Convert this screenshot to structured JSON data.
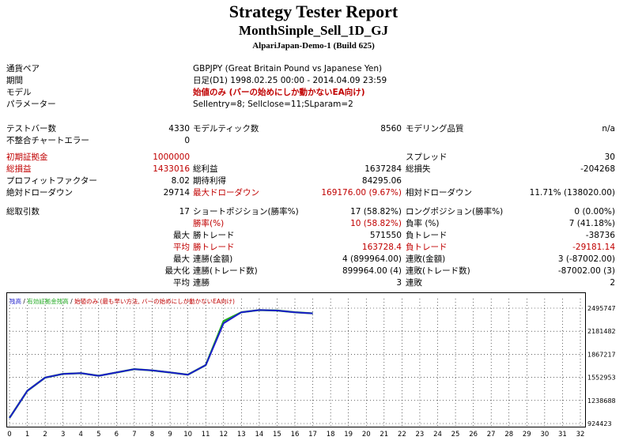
{
  "header": {
    "title": "Strategy Tester Report",
    "subtitle": "MonthSinple_Sell_1D_GJ",
    "account": "AlpariJapan-Demo-1 (Build 625)"
  },
  "info": {
    "symbol_label": "通貨ペア",
    "symbol_value": "GBPJPY (Great Britain Pound vs Japanese Yen)",
    "period_label": "期間",
    "period_value": "日足(D1) 1998.02.25 00:00 - 2014.04.09 23:59",
    "model_label": "モデル",
    "model_value": "始値のみ (バーの始めにしか動かないEA向け)",
    "params_label": "パラメーター",
    "params_value": "Sellentry=8; Sellclose=11;SLparam=2"
  },
  "stats": {
    "bars_label": "テストバー数",
    "bars_value": "4330",
    "ticks_label": "モデルティック数",
    "ticks_value": "8560",
    "quality_label": "モデリング品質",
    "quality_value": "n/a",
    "mismatch_label": "不整合チャートエラー",
    "mismatch_value": "0",
    "deposit_label": "初期証拠金",
    "deposit_value": "1000000",
    "spread_label": "スプレッド",
    "spread_value": "30",
    "total_profit_label": "総損益",
    "total_profit_value": "1433016",
    "gross_profit_label": "総利益",
    "gross_profit_value": "1637284",
    "gross_loss_label": "総損失",
    "gross_loss_value": "-204268",
    "pf_label": "プロフィットファクター",
    "pf_value": "8.02",
    "expected_label": "期待利得",
    "expected_value": "84295.06",
    "abs_dd_label": "絶対ドローダウン",
    "abs_dd_value": "29714",
    "max_dd_label": "最大ドローダウン",
    "max_dd_value": "169176.00 (9.67%)",
    "rel_dd_label": "相対ドローダウン",
    "rel_dd_value": "11.71% (138020.00)",
    "trades_label": "総取引数",
    "trades_value": "17",
    "short_label": "ショートポジション(勝率%)",
    "short_value": "17 (58.82%)",
    "long_label": "ロングポジション(勝率%)",
    "long_value": "0 (0.00%)",
    "winrate_label": "勝率(%)",
    "winrate_value": "10 (58.82%)",
    "lossrate_label": "負率 (%)",
    "lossrate_value": "7 (41.18%)",
    "max_label": "最大",
    "max_win_label": "勝トレード",
    "max_win_value": "571550",
    "max_loss_label": "負トレード",
    "max_loss_value": "-38736",
    "avg_label": "平均",
    "avg_win_label": "勝トレード",
    "avg_win_value": "163728.4",
    "avg_loss_label": "負トレード",
    "avg_loss_value": "-29181.14",
    "max2_label": "最大",
    "consec_win_amt_label": "連勝(金額)",
    "consec_win_amt_value": "4 (899964.00)",
    "consec_loss_amt_label": "連敗(金額)",
    "consec_loss_amt_value": "3 (-87002.00)",
    "maxc_label": "最大化",
    "consec_profit_label": "連勝(トレード数)",
    "consec_profit_value": "899964.00 (4)",
    "consec_lossc_label": "連敗(トレード数)",
    "consec_lossc_value": "-87002.00 (3)",
    "avg2_label": "平均",
    "avg_consec_win_label": "連勝",
    "avg_consec_win_value": "3",
    "avg_consec_loss_label": "連敗",
    "avg_consec_loss_value": "2"
  },
  "chart_data": {
    "type": "line",
    "legend": {
      "balance": "残高",
      "sep1": " / ",
      "equity": "有効証拠金残高",
      "sep2": " / ",
      "model": "始値のみ (最も早い方法, バーの始めにしか動かないEA向け)"
    },
    "x_ticks": [
      "0",
      "1",
      "2",
      "3",
      "4",
      "5",
      "6",
      "7",
      "8",
      "9",
      "10",
      "11",
      "12",
      "13",
      "14",
      "15",
      "16",
      "17",
      "18",
      "19",
      "20",
      "21",
      "22",
      "23",
      "24",
      "25",
      "26",
      "27",
      "28",
      "29",
      "30",
      "31",
      "32"
    ],
    "y_ticks": [
      "2495747",
      "2181482",
      "1867217",
      "1552953",
      "1238688",
      "924423"
    ],
    "xlim": [
      0,
      32
    ],
    "ylim": [
      924423,
      2495747
    ],
    "series": [
      {
        "name": "残高",
        "color": "#1c1ccc",
        "x": [
          0,
          1,
          2,
          3,
          4,
          5,
          6,
          7,
          8,
          9,
          10,
          11,
          12,
          13,
          14,
          15,
          16,
          17
        ],
        "y": [
          1000000,
          1370000,
          1550000,
          1600000,
          1610000,
          1575000,
          1620000,
          1665000,
          1648000,
          1620000,
          1590000,
          1720000,
          2290000,
          2440000,
          2470000,
          2463000,
          2440000,
          2425000
        ]
      },
      {
        "name": "有効証拠金残高",
        "color": "#22aa22",
        "x": [
          0,
          1,
          2,
          3,
          4,
          5,
          6,
          7,
          8,
          9,
          10,
          11,
          12,
          13,
          14,
          15,
          16,
          17
        ],
        "y": [
          1000000,
          1370000,
          1550000,
          1600000,
          1610000,
          1575000,
          1620000,
          1665000,
          1648000,
          1620000,
          1590000,
          1720000,
          2320000,
          2440000,
          2470000,
          2463000,
          2440000,
          2425000
        ]
      }
    ]
  }
}
